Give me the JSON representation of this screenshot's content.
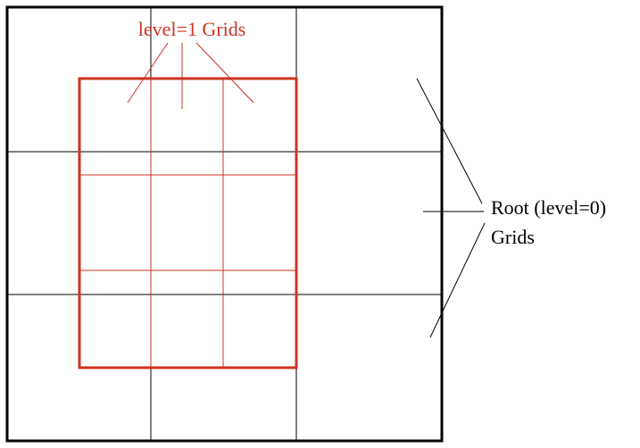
{
  "labels": {
    "level1": "level=1 Grids",
    "root_line1": "Root (level=0)",
    "root_line2": "Grids"
  },
  "colors": {
    "root": "#000000",
    "level1": "#cc3322"
  }
}
